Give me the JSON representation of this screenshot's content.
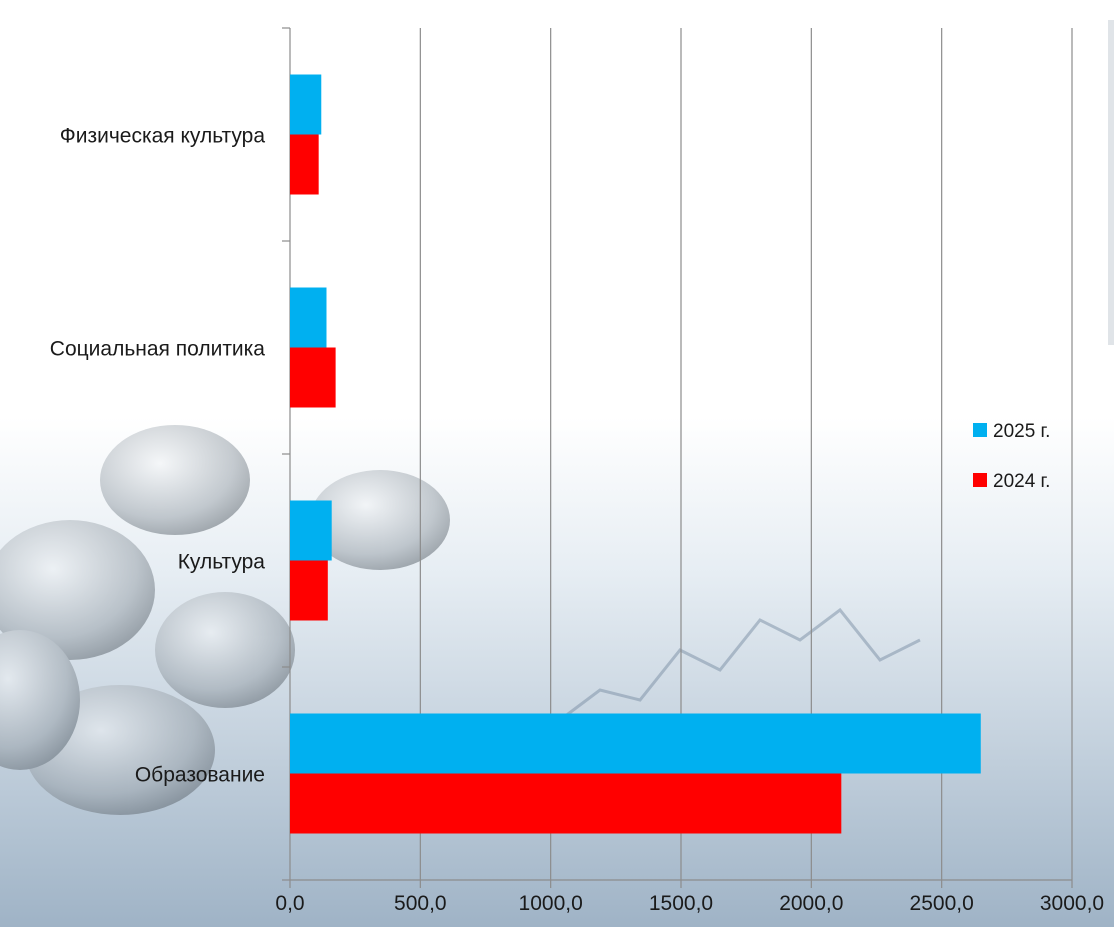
{
  "chart_data": {
    "type": "bar",
    "orientation": "horizontal",
    "categories": [
      "Образование",
      "Культура",
      "Социальная политика",
      "Физическая культура"
    ],
    "series": [
      {
        "name": "2025 г.",
        "color": "#00B0F0",
        "values": [
          2650,
          160,
          140,
          120
        ]
      },
      {
        "name": "2024 г.",
        "color": "#FF0000",
        "values": [
          2115,
          145,
          175,
          110
        ]
      }
    ],
    "x_ticks": [
      "0,0",
      "500,0",
      "1000,0",
      "1500,0",
      "2000,0",
      "2500,0",
      "3000,0"
    ],
    "xlim": [
      0,
      3000
    ],
    "grid": "vertical",
    "legend": "right",
    "title": "",
    "xlabel": "",
    "ylabel": ""
  }
}
